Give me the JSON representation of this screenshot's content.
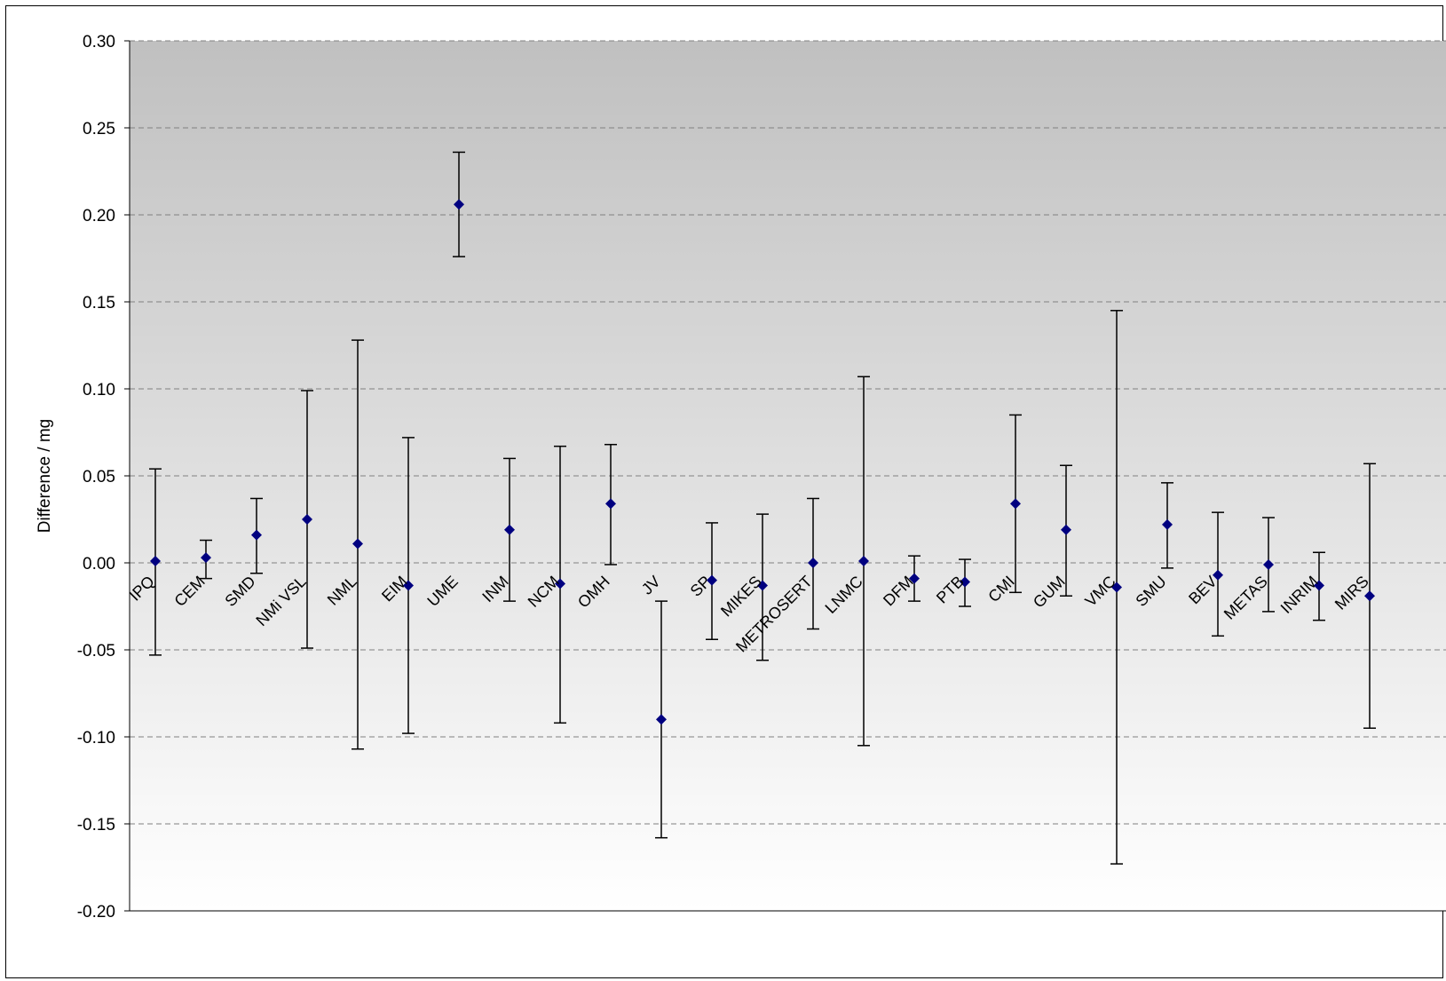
{
  "chart_data": {
    "type": "scatter",
    "title": "",
    "xlabel": "",
    "ylabel": "Difference / mg",
    "ylim": [
      -0.2,
      0.3
    ],
    "yticks": [
      "0.30",
      "0.25",
      "0.20",
      "0.15",
      "0.10",
      "0.05",
      "0.00",
      "-0.05",
      "-0.10",
      "-0.15",
      "-0.20"
    ],
    "grid": true,
    "legend": "none",
    "background": {
      "top": "#c0c0c0",
      "bottom": "#ffffff"
    },
    "marker_color": "#000080",
    "categories": [
      "IPQ",
      "CEM",
      "SMD",
      "NMi VSL",
      "NML",
      "EIM",
      "UME",
      "INM",
      "NCM",
      "OMH",
      "JV",
      "SP",
      "MIKES",
      "METROSERT",
      "LNMC",
      "DFM",
      "PTB",
      "CMI",
      "GUM",
      "VMC",
      "SMU",
      "BEV",
      "METAS",
      "INRIM",
      "MIRS"
    ],
    "values": [
      0.001,
      0.003,
      0.016,
      0.025,
      0.011,
      -0.013,
      0.206,
      0.019,
      -0.012,
      0.034,
      -0.09,
      -0.01,
      -0.013,
      0.0,
      0.001,
      -0.009,
      -0.011,
      0.034,
      0.019,
      -0.014,
      0.022,
      -0.007,
      -0.001,
      -0.013,
      -0.019
    ],
    "err_low": [
      -0.053,
      -0.009,
      -0.006,
      -0.049,
      -0.107,
      -0.098,
      0.176,
      -0.022,
      -0.092,
      -0.001,
      -0.158,
      -0.044,
      -0.056,
      -0.038,
      -0.105,
      -0.022,
      -0.025,
      -0.017,
      -0.019,
      -0.173,
      -0.003,
      -0.042,
      -0.028,
      -0.033,
      -0.095
    ],
    "err_high": [
      0.054,
      0.013,
      0.037,
      0.099,
      0.128,
      0.072,
      0.236,
      0.06,
      0.067,
      0.068,
      -0.022,
      0.023,
      0.028,
      0.037,
      0.107,
      0.004,
      0.002,
      0.085,
      0.056,
      0.145,
      0.046,
      0.029,
      0.026,
      0.006,
      0.057
    ]
  }
}
